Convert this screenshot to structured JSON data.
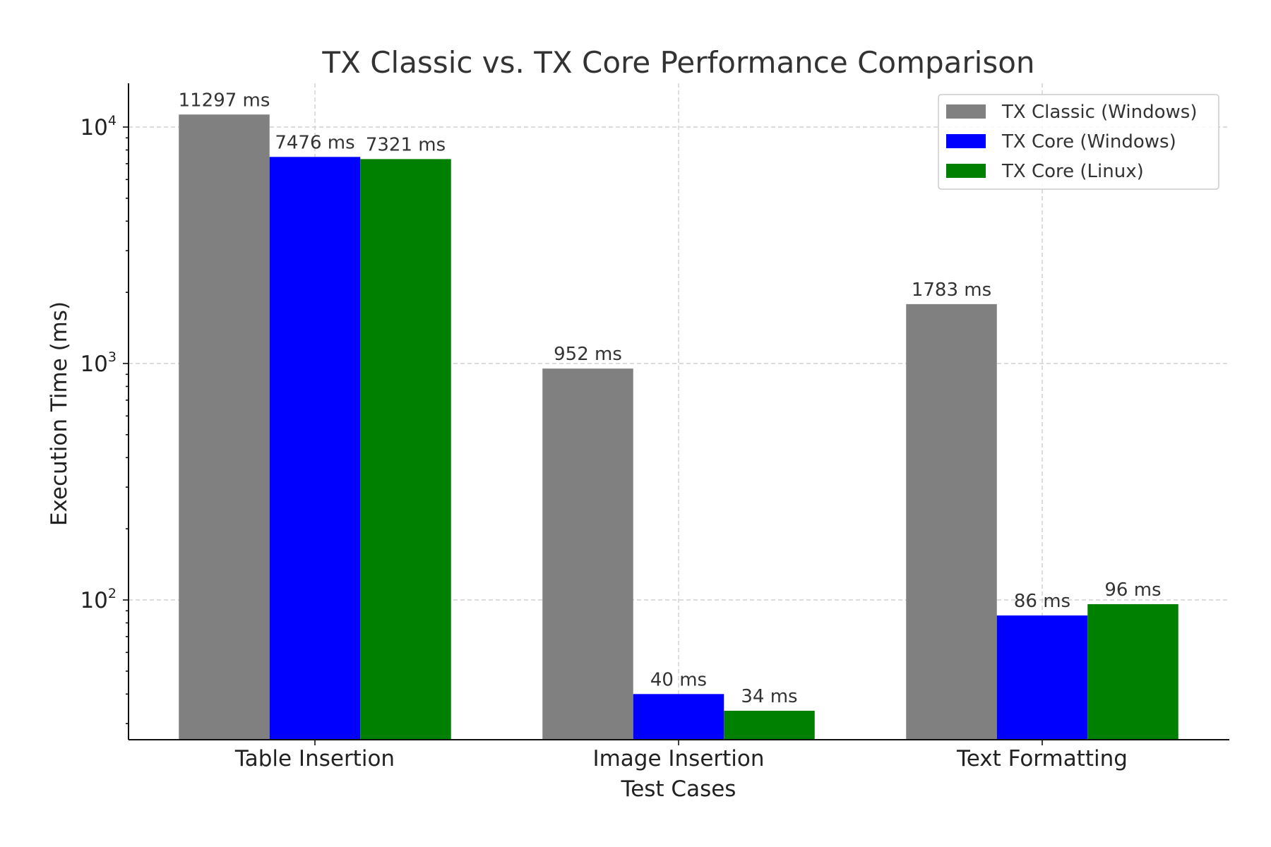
{
  "chart_data": {
    "type": "bar",
    "title": "TX Classic vs. TX Core Performance Comparison",
    "xlabel": "Test Cases",
    "ylabel": "Execution Time (ms)",
    "yscale": "log",
    "ylim": [
      26,
      15000
    ],
    "grid": true,
    "legend_position": "top-right",
    "categories": [
      "Table Insertion",
      "Image Insertion",
      "Text Formatting"
    ],
    "series": [
      {
        "name": "TX Classic (Windows)",
        "color": "#808080",
        "values": [
          11297,
          952,
          1783
        ],
        "labels": [
          "11297 ms",
          "952 ms",
          "1783 ms"
        ]
      },
      {
        "name": "TX Core (Windows)",
        "color": "#0000ff",
        "values": [
          7476,
          40,
          86
        ],
        "labels": [
          "7476 ms",
          "40 ms",
          "86 ms"
        ]
      },
      {
        "name": "TX Core (Linux)",
        "color": "#008000",
        "values": [
          7321,
          34,
          96
        ],
        "labels": [
          "7321 ms",
          "34 ms",
          "96 ms"
        ]
      }
    ],
    "y_ticks": [
      {
        "value": 100,
        "base": "10",
        "exp": "2"
      },
      {
        "value": 1000,
        "base": "10",
        "exp": "3"
      },
      {
        "value": 10000,
        "base": "10",
        "exp": "4"
      }
    ]
  }
}
